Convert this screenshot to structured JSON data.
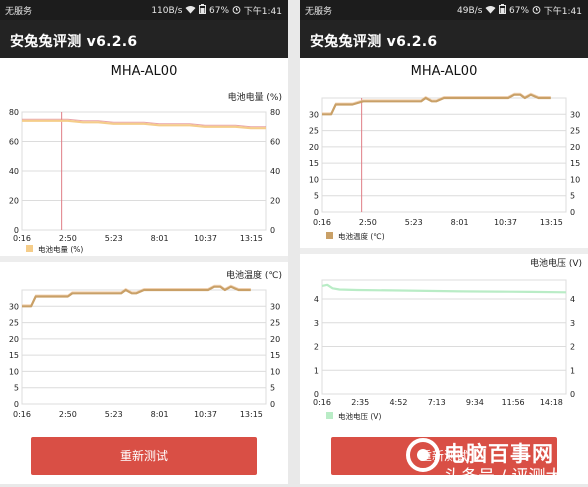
{
  "status_bar": {
    "left_text": "无服务",
    "speed": [
      "110B/s",
      "49B/s"
    ],
    "battery": "67%",
    "time": "下午1:41"
  },
  "app": {
    "title": "安兔兔评测 v6.2.6",
    "device": "MHA-AL00",
    "button_label": "重新测试"
  },
  "colors": {
    "battery_level": "#f5cd8a",
    "temperature": "#c9a067",
    "voltage": "#b9ecc6",
    "marker": "#e07c85",
    "button": "#d94f45"
  },
  "watermark": {
    "brand": "电脑百事网",
    "subtitle": "头条号 / 评测大仁"
  },
  "chart_data": [
    {
      "id": "left-battery-level",
      "type": "line",
      "title": "电池电量 (%)",
      "legend": "电池电量 (%)",
      "x_ticks": [
        "0:16",
        "2:50",
        "5:23",
        "8:01",
        "10:37",
        "13:15"
      ],
      "x_range": [
        0,
        16
      ],
      "marker_x": 2.6,
      "ylim": [
        0,
        80
      ],
      "y_ticks": [
        0,
        20,
        40,
        60,
        80
      ],
      "x": [
        0,
        1,
        2,
        3,
        4,
        5,
        6,
        7,
        8,
        9,
        10,
        11,
        12,
        13,
        14,
        15,
        16
      ],
      "values": [
        74,
        74,
        74,
        74,
        73,
        73,
        72,
        72,
        72,
        71,
        71,
        71,
        70,
        70,
        70,
        69,
        69
      ]
    },
    {
      "id": "left-temperature",
      "type": "line",
      "title": "电池温度 (℃)",
      "x_ticks": [
        "0:16",
        "2:50",
        "5:23",
        "8:01",
        "10:37",
        "13:15"
      ],
      "x_range": [
        0,
        16
      ],
      "ylim": [
        0,
        35
      ],
      "y_ticks": [
        0,
        5,
        10,
        15,
        20,
        25,
        30
      ],
      "x": [
        0,
        0.6,
        0.9,
        2.0,
        3.0,
        3.3,
        6.5,
        6.8,
        7.2,
        7.5,
        8.0,
        9.0,
        12.2,
        12.6,
        13.0,
        13.3,
        13.7,
        14.2,
        15.0
      ],
      "values": [
        30,
        30,
        33,
        33,
        33,
        34,
        34,
        35,
        34,
        34,
        35,
        35,
        35,
        36,
        36,
        35,
        36,
        35,
        35
      ]
    },
    {
      "id": "right-temperature",
      "type": "line",
      "title": "",
      "legend": "电池温度 (℃)",
      "x_ticks": [
        "0:16",
        "2:50",
        "5:23",
        "8:01",
        "10:37",
        "13:15"
      ],
      "x_range": [
        0,
        16
      ],
      "marker_x": 2.6,
      "ylim": [
        0,
        35
      ],
      "y_ticks": [
        0,
        5,
        10,
        15,
        20,
        25,
        30
      ],
      "x": [
        0,
        0.6,
        0.9,
        2.0,
        2.7,
        3.0,
        6.5,
        6.8,
        7.2,
        7.5,
        8.0,
        9.0,
        12.2,
        12.6,
        13.0,
        13.3,
        13.7,
        14.2,
        15.0
      ],
      "values": [
        30,
        30,
        33,
        33,
        34,
        34,
        34,
        35,
        34,
        34,
        35,
        35,
        35,
        36,
        36,
        35,
        36,
        35,
        35
      ]
    },
    {
      "id": "right-voltage",
      "type": "line",
      "title": "电池电压 (V)",
      "legend": "电池电压 (V)",
      "x_ticks": [
        "0:16",
        "2:35",
        "4:52",
        "7:13",
        "9:34",
        "11:56",
        "14:18"
      ],
      "x_range": [
        0,
        14
      ],
      "ylim": [
        0,
        4.8
      ],
      "y_ticks": [
        0,
        1,
        2,
        3,
        4
      ],
      "x": [
        0,
        0.3,
        0.6,
        1.0,
        2.0,
        4.0,
        6.0,
        8.0,
        10.0,
        12.0,
        14.0
      ],
      "values": [
        4.55,
        4.6,
        4.45,
        4.4,
        4.38,
        4.36,
        4.34,
        4.32,
        4.31,
        4.3,
        4.28
      ]
    }
  ]
}
